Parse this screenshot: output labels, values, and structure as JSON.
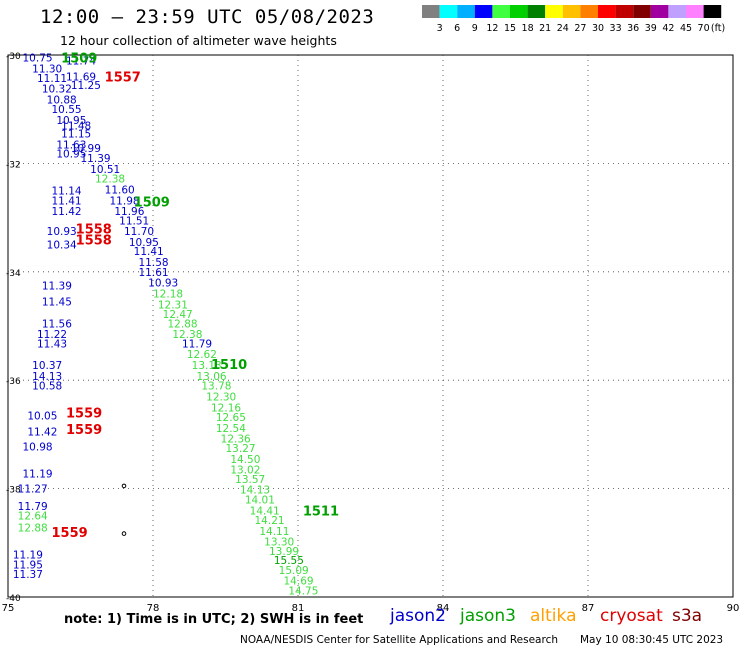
{
  "header": {
    "title": "12:00 – 23:59 UTC 05/08/2023",
    "subtitle": "12 hour collection of altimeter wave heights"
  },
  "legend": {
    "unit": "(ft)",
    "bins": [
      {
        "label": "3",
        "color": "#808080"
      },
      {
        "label": "6",
        "color": "#00ffff"
      },
      {
        "label": "9",
        "color": "#00b0ff"
      },
      {
        "label": "12",
        "color": "#0000ff"
      },
      {
        "label": "15",
        "color": "#40ff40"
      },
      {
        "label": "18",
        "color": "#00d000"
      },
      {
        "label": "21",
        "color": "#008000"
      },
      {
        "label": "24",
        "color": "#ffff00"
      },
      {
        "label": "27",
        "color": "#ffc000"
      },
      {
        "label": "30",
        "color": "#ff8000"
      },
      {
        "label": "33",
        "color": "#ff0000"
      },
      {
        "label": "36",
        "color": "#c00000"
      },
      {
        "label": "39",
        "color": "#800000"
      },
      {
        "label": "42",
        "color": "#a000a0"
      },
      {
        "label": "45",
        "color": "#c0a0ff"
      },
      {
        "label": "70",
        "color": "#ff80ff"
      },
      {
        "label": "",
        "color": "#000000"
      }
    ]
  },
  "map": {
    "lon_ticks": [
      "75",
      "78",
      "81",
      "84",
      "87",
      "90"
    ],
    "lat_ticks": [
      "-30",
      "-32",
      "-34",
      "-36",
      "-38",
      "-40"
    ],
    "lon_range": [
      75,
      90
    ],
    "lat_range": [
      -30,
      -40
    ],
    "colors": {
      "jason2": "#0000cc",
      "jason3": "#00a000",
      "light": "#40dd40",
      "red": "#e00000"
    },
    "cycle_labels": [
      {
        "text": "1557",
        "lon": 77.0,
        "lat": -30.4,
        "color": "red"
      },
      {
        "text": "1509",
        "lon": 77.6,
        "lat": -32.7,
        "color": "jason3"
      },
      {
        "text": "1558",
        "lon": 76.4,
        "lat": -33.2,
        "color": "red"
      },
      {
        "text": "1558",
        "lon": 76.4,
        "lat": -33.4,
        "color": "red"
      },
      {
        "text": "1510",
        "lon": 79.2,
        "lat": -35.7,
        "color": "jason3"
      },
      {
        "text": "1559",
        "lon": 76.2,
        "lat": -36.6,
        "color": "red"
      },
      {
        "text": "1559",
        "lon": 76.2,
        "lat": -36.9,
        "color": "red"
      },
      {
        "text": "1511",
        "lon": 81.1,
        "lat": -38.4,
        "color": "jason3"
      },
      {
        "text": "1559",
        "lon": 75.9,
        "lat": -38.8,
        "color": "red"
      },
      {
        "text": "1509",
        "lon": 76.1,
        "lat": -30.05,
        "color": "jason3"
      }
    ],
    "points": [
      {
        "v": "10.75",
        "lon": 75.3,
        "lat": -30.05,
        "c": "jason2"
      },
      {
        "v": "11.74",
        "lon": 76.2,
        "lat": -30.1,
        "c": "jason2"
      },
      {
        "v": "11.30",
        "lon": 75.5,
        "lat": -30.25,
        "c": "jason2"
      },
      {
        "v": "11.11",
        "lon": 75.6,
        "lat": -30.42,
        "c": "jason2"
      },
      {
        "v": "11.69",
        "lon": 76.2,
        "lat": -30.4,
        "c": "jason2"
      },
      {
        "v": "11.25",
        "lon": 76.3,
        "lat": -30.55,
        "c": "jason2"
      },
      {
        "v": "10.32",
        "lon": 75.7,
        "lat": -30.62,
        "c": "jason2"
      },
      {
        "v": "10.88",
        "lon": 75.8,
        "lat": -30.82,
        "c": "jason2"
      },
      {
        "v": "10.55",
        "lon": 75.9,
        "lat": -31.0,
        "c": "jason2"
      },
      {
        "v": "10.95",
        "lon": 76.0,
        "lat": -31.2,
        "c": "jason2"
      },
      {
        "v": "11.48",
        "lon": 76.1,
        "lat": -31.3,
        "c": "jason2"
      },
      {
        "v": "11.15",
        "lon": 76.1,
        "lat": -31.45,
        "c": "jason2"
      },
      {
        "v": "11.63",
        "lon": 76.0,
        "lat": -31.65,
        "c": "jason2"
      },
      {
        "v": "10.99",
        "lon": 76.3,
        "lat": -31.72,
        "c": "jason2"
      },
      {
        "v": "10.95",
        "lon": 76.0,
        "lat": -31.82,
        "c": "jason2"
      },
      {
        "v": "11.39",
        "lon": 76.5,
        "lat": -31.9,
        "c": "jason2"
      },
      {
        "v": "10.51",
        "lon": 76.7,
        "lat": -32.1,
        "c": "jason2"
      },
      {
        "v": "12.38",
        "lon": 76.8,
        "lat": -32.28,
        "c": "light"
      },
      {
        "v": "11.14",
        "lon": 75.9,
        "lat": -32.5,
        "c": "jason2"
      },
      {
        "v": "11.60",
        "lon": 77.0,
        "lat": -32.48,
        "c": "jason2"
      },
      {
        "v": "11.41",
        "lon": 75.9,
        "lat": -32.68,
        "c": "jason2"
      },
      {
        "v": "11.98",
        "lon": 77.1,
        "lat": -32.68,
        "c": "jason2"
      },
      {
        "v": "11.42",
        "lon": 75.9,
        "lat": -32.88,
        "c": "jason2"
      },
      {
        "v": "11.96",
        "lon": 77.2,
        "lat": -32.88,
        "c": "jason2"
      },
      {
        "v": "11.51",
        "lon": 77.3,
        "lat": -33.05,
        "c": "jason2"
      },
      {
        "v": "10.93",
        "lon": 75.8,
        "lat": -33.25,
        "c": "jason2"
      },
      {
        "v": "11.70",
        "lon": 77.4,
        "lat": -33.25,
        "c": "jason2"
      },
      {
        "v": "10.95",
        "lon": 77.5,
        "lat": -33.45,
        "c": "jason2"
      },
      {
        "v": "10.34",
        "lon": 75.8,
        "lat": -33.5,
        "c": "jason2"
      },
      {
        "v": "11.41",
        "lon": 77.6,
        "lat": -33.62,
        "c": "jason2"
      },
      {
        "v": "11.58",
        "lon": 77.7,
        "lat": -33.82,
        "c": "jason2"
      },
      {
        "v": "11.61",
        "lon": 77.7,
        "lat": -34.0,
        "c": "jason2"
      },
      {
        "v": "10.93",
        "lon": 77.9,
        "lat": -34.2,
        "c": "jason2"
      },
      {
        "v": "11.39",
        "lon": 75.7,
        "lat": -34.25,
        "c": "jason2"
      },
      {
        "v": "11.45",
        "lon": 75.7,
        "lat": -34.55,
        "c": "jason2"
      },
      {
        "v": "12.18",
        "lon": 78.0,
        "lat": -34.4,
        "c": "light"
      },
      {
        "v": "12.31",
        "lon": 78.1,
        "lat": -34.6,
        "c": "light"
      },
      {
        "v": "12.47",
        "lon": 78.2,
        "lat": -34.78,
        "c": "light"
      },
      {
        "v": "11.56",
        "lon": 75.7,
        "lat": -34.95,
        "c": "jason2"
      },
      {
        "v": "12.88",
        "lon": 78.3,
        "lat": -34.95,
        "c": "light"
      },
      {
        "v": "11.22",
        "lon": 75.6,
        "lat": -35.15,
        "c": "jason2"
      },
      {
        "v": "12.38",
        "lon": 78.4,
        "lat": -35.15,
        "c": "light"
      },
      {
        "v": "11.43",
        "lon": 75.6,
        "lat": -35.32,
        "c": "jason2"
      },
      {
        "v": "11.79",
        "lon": 78.6,
        "lat": -35.32,
        "c": "jason2"
      },
      {
        "v": "12.62",
        "lon": 78.7,
        "lat": -35.52,
        "c": "light"
      },
      {
        "v": "10.37",
        "lon": 75.5,
        "lat": -35.72,
        "c": "jason2"
      },
      {
        "v": "13.13",
        "lon": 78.8,
        "lat": -35.72,
        "c": "light"
      },
      {
        "v": "14.13",
        "lon": 75.5,
        "lat": -35.92,
        "c": "jason2"
      },
      {
        "v": "13.06",
        "lon": 78.9,
        "lat": -35.92,
        "c": "light"
      },
      {
        "v": "10.58",
        "lon": 75.5,
        "lat": -36.1,
        "c": "jason2"
      },
      {
        "v": "13.78",
        "lon": 79.0,
        "lat": -36.1,
        "c": "light"
      },
      {
        "v": "12.30",
        "lon": 79.1,
        "lat": -36.3,
        "c": "light"
      },
      {
        "v": "12.16",
        "lon": 79.2,
        "lat": -36.5,
        "c": "light"
      },
      {
        "v": "10.05",
        "lon": 75.4,
        "lat": -36.65,
        "c": "jason2"
      },
      {
        "v": "12.65",
        "lon": 79.3,
        "lat": -36.68,
        "c": "light"
      },
      {
        "v": "12.54",
        "lon": 79.3,
        "lat": -36.88,
        "c": "light"
      },
      {
        "v": "11.42",
        "lon": 75.4,
        "lat": -36.95,
        "c": "jason2"
      },
      {
        "v": "12.36",
        "lon": 79.4,
        "lat": -37.08,
        "c": "light"
      },
      {
        "v": "10.98",
        "lon": 75.3,
        "lat": -37.22,
        "c": "jason2"
      },
      {
        "v": "13.27",
        "lon": 79.5,
        "lat": -37.25,
        "c": "light"
      },
      {
        "v": "14.50",
        "lon": 79.6,
        "lat": -37.45,
        "c": "light"
      },
      {
        "v": "13.02",
        "lon": 79.6,
        "lat": -37.65,
        "c": "light"
      },
      {
        "v": "11.19",
        "lon": 75.3,
        "lat": -37.72,
        "c": "jason2"
      },
      {
        "v": "13.57",
        "lon": 79.7,
        "lat": -37.82,
        "c": "light"
      },
      {
        "v": "11.27",
        "lon": 75.2,
        "lat": -38.0,
        "c": "jason2"
      },
      {
        "v": "14.13",
        "lon": 79.8,
        "lat": -38.02,
        "c": "light"
      },
      {
        "v": "14.01",
        "lon": 79.9,
        "lat": -38.2,
        "c": "light"
      },
      {
        "v": "11.79",
        "lon": 75.2,
        "lat": -38.32,
        "c": "jason2"
      },
      {
        "v": "14.41",
        "lon": 80.0,
        "lat": -38.4,
        "c": "light"
      },
      {
        "v": "12.64",
        "lon": 75.2,
        "lat": -38.5,
        "c": "light"
      },
      {
        "v": "14.21",
        "lon": 80.1,
        "lat": -38.58,
        "c": "light"
      },
      {
        "v": "12.88",
        "lon": 75.2,
        "lat": -38.72,
        "c": "light"
      },
      {
        "v": "14.11",
        "lon": 80.2,
        "lat": -38.78,
        "c": "light"
      },
      {
        "v": "13.30",
        "lon": 80.3,
        "lat": -38.98,
        "c": "light"
      },
      {
        "v": "13.99",
        "lon": 80.4,
        "lat": -39.15,
        "c": "light"
      },
      {
        "v": "11.19",
        "lon": 75.1,
        "lat": -39.22,
        "c": "jason2"
      },
      {
        "v": "15.55",
        "lon": 80.5,
        "lat": -39.32,
        "c": "jason3"
      },
      {
        "v": "11.95",
        "lon": 75.1,
        "lat": -39.4,
        "c": "jason2"
      },
      {
        "v": "15.09",
        "lon": 80.6,
        "lat": -39.5,
        "c": "light"
      },
      {
        "v": "11.37",
        "lon": 75.1,
        "lat": -39.58,
        "c": "jason2"
      },
      {
        "v": "14.69",
        "lon": 80.7,
        "lat": -39.7,
        "c": "light"
      },
      {
        "v": "14.75",
        "lon": 80.8,
        "lat": -39.88,
        "c": "light"
      }
    ],
    "dots": [
      {
        "lon": 77.4,
        "lat": -37.95
      },
      {
        "lon": 77.4,
        "lat": -38.83
      }
    ]
  },
  "footer": {
    "note": "note: 1) Time is in UTC; 2) SWH is in feet",
    "satellites": [
      {
        "name": "jason2",
        "color": "#0000cc"
      },
      {
        "name": "jason3",
        "color": "#00a000"
      },
      {
        "name": "altika",
        "color": "#ffa000"
      },
      {
        "name": "cryosat",
        "color": "#e00000"
      },
      {
        "name": "s3a",
        "color": "#800000"
      }
    ],
    "credit": "NOAA/NESDIS Center for Satellite Applications and Research",
    "generated": "May 10 08:30:45 UTC 2023"
  }
}
